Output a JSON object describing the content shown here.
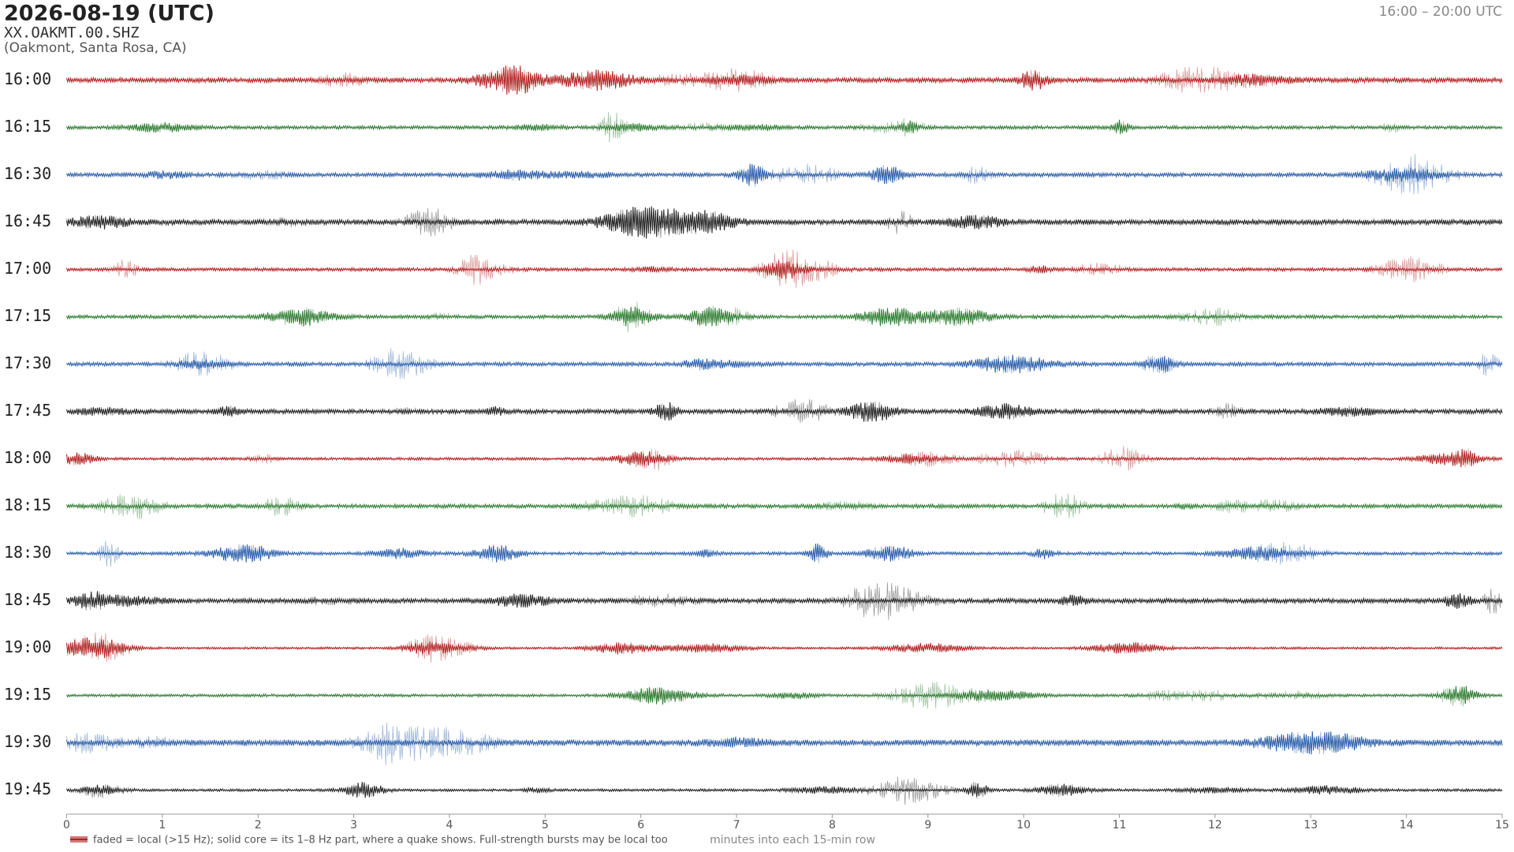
{
  "chart_data": {
    "type": "helicorder",
    "title": "2026-08-19  (UTC)",
    "station": "XX.OAKMT.00.SHZ",
    "location": "(Oakmont, Santa Rosa, CA)",
    "time_range": "16:00 – 20:00 UTC",
    "categories": [
      "16:00",
      "16:15",
      "16:30",
      "16:45",
      "17:00",
      "17:15",
      "17:30",
      "17:45",
      "18:00",
      "18:15",
      "18:30",
      "18:45",
      "19:00",
      "19:15",
      "19:30",
      "19:45"
    ],
    "colors": [
      "#b22222",
      "#2e7d32",
      "#2b5fab",
      "#222222"
    ],
    "xlim": [
      0,
      15
    ],
    "xticks": [
      0,
      1,
      2,
      3,
      4,
      5,
      6,
      7,
      8,
      9,
      10,
      11,
      12,
      13,
      14,
      15
    ],
    "xlabel": "minutes into each 15-min row",
    "note": "faded = local (>15 Hz); solid core = its 1–8 Hz part, where a quake shows. Full-strength bursts may be local too"
  }
}
